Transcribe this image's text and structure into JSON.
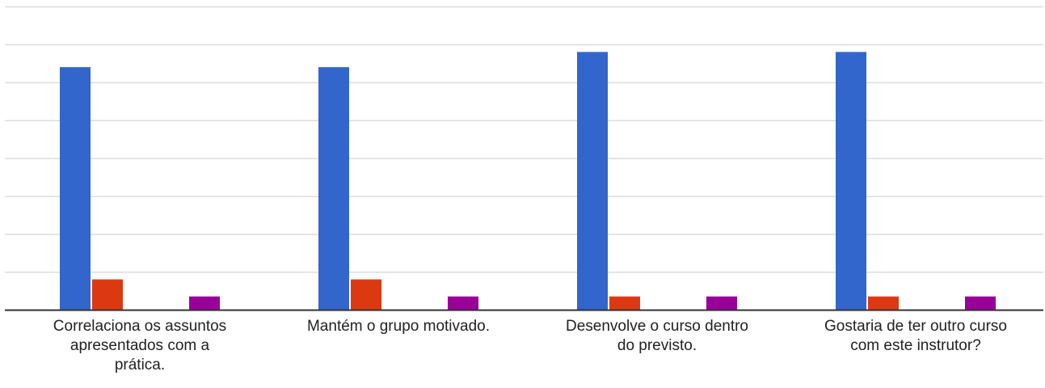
{
  "chart_data": {
    "type": "bar",
    "categories": [
      [
        "Correlaciona os assuntos",
        "apresentados com a",
        "prática."
      ],
      [
        "Mantém o grupo motivado."
      ],
      [
        "Desenvolve o curso dentro",
        "do previsto."
      ],
      [
        "Gostaria de ter outro curso",
        "com este instrutor?"
      ]
    ],
    "series": [
      {
        "values": [
          6.4,
          6.4,
          6.8,
          6.8
        ],
        "color": "#3366cc"
      },
      {
        "values": [
          0.8,
          0.8,
          0.35,
          0.35
        ],
        "color": "#dc3912"
      },
      {
        "values": [
          0.35,
          0.35,
          0.35,
          0.35
        ],
        "color": "#990099"
      }
    ],
    "ylim": [
      0,
      8
    ],
    "y_tick_step": 1,
    "grid": true,
    "legend": "none",
    "title": "",
    "xlabel": "",
    "ylabel": "",
    "baseline_color": "#333333",
    "grid_color": "#dddddd"
  }
}
